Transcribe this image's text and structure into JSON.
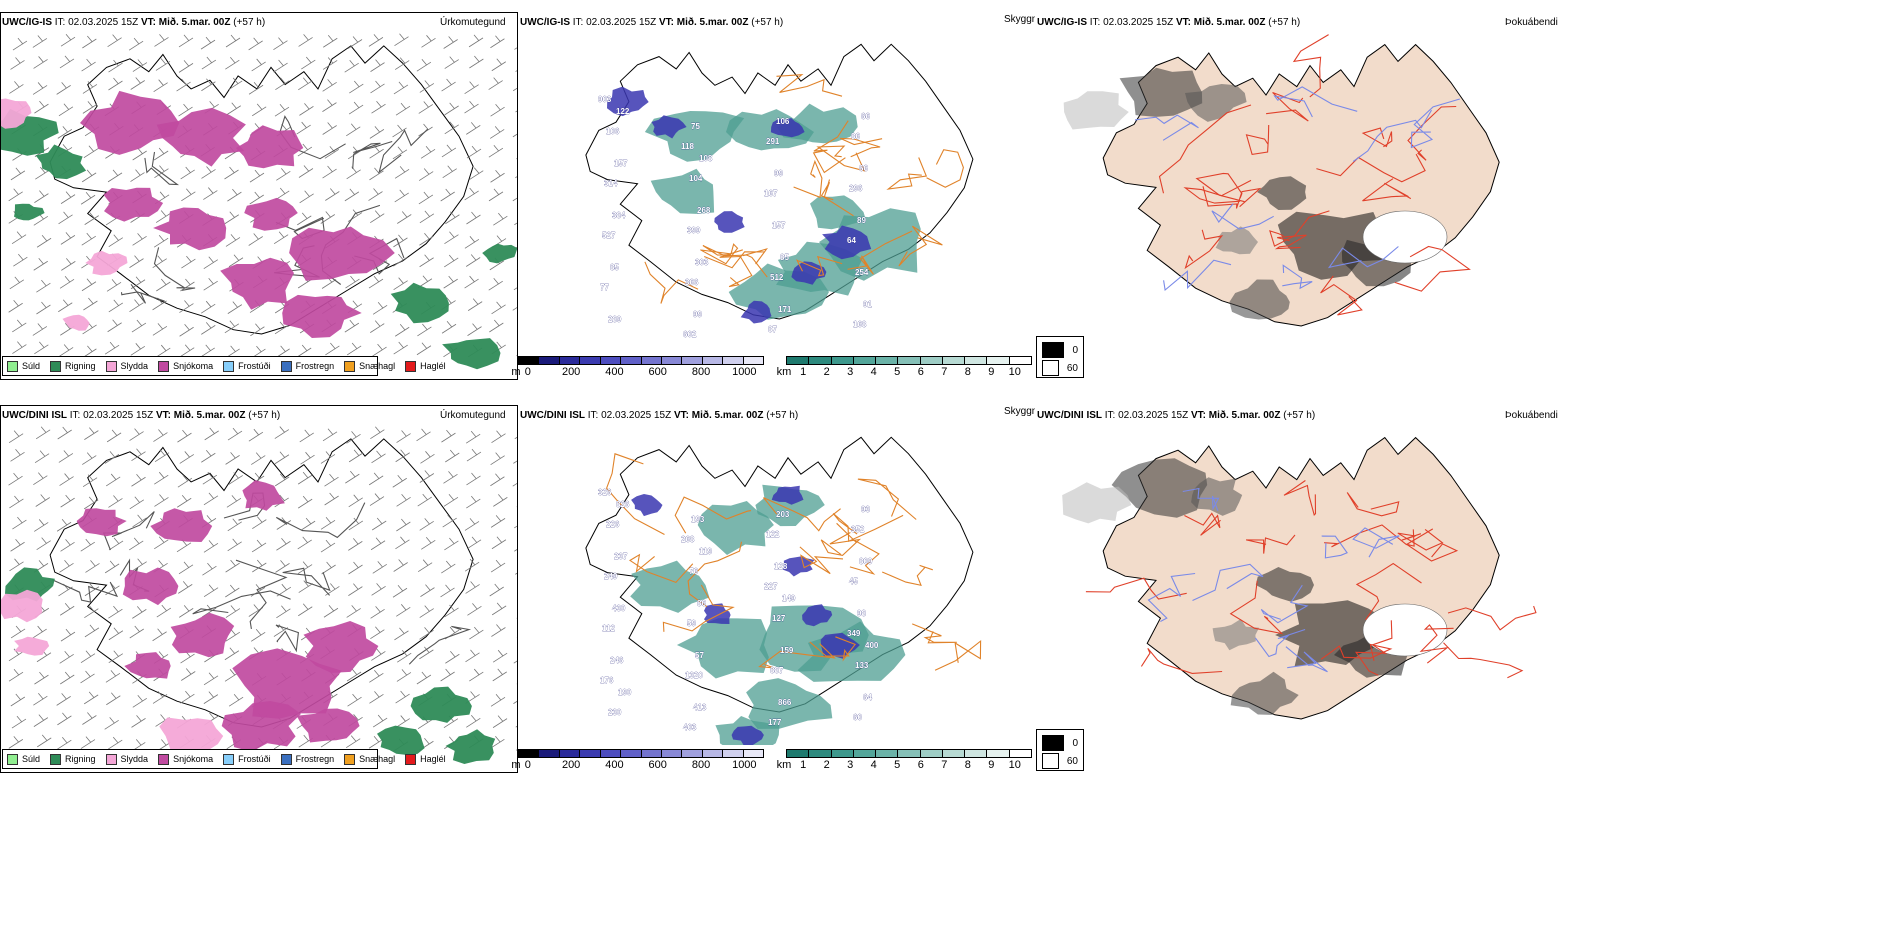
{
  "rows": [
    {
      "model": "UWC/IG-IS",
      "it_label": "IT:",
      "it_value": "02.03.2025 15Z",
      "vt_label": "VT:",
      "vt_value": "Mið. 5.mar. 00Z",
      "lead": "(+57 h)",
      "panel_titles": [
        "Úrkomutegund",
        "Skyggni",
        "Þokuábendi"
      ],
      "cloud_labels": [
        "903",
        "118",
        "167",
        "64",
        "77",
        "602",
        "291",
        "296",
        "527",
        "366",
        "87",
        "86",
        "314",
        "399",
        "512",
        "168",
        "106",
        "104",
        "157",
        "254",
        "289",
        "75",
        "99",
        "89",
        "85",
        "99",
        "106",
        "66",
        "384",
        "303",
        "171",
        "66",
        "157",
        "268",
        "85",
        "91",
        "122",
        "108"
      ]
    },
    {
      "model": "UWC/DINI ISL",
      "it_label": "IT:",
      "it_value": "02.03.2025 15Z",
      "vt_label": "VT:",
      "vt_value": "Mið. 5.mar. 00Z",
      "lead": "(+57 h)",
      "panel_titles": [
        "Úrkomutegund",
        "Skyggni",
        "Þokuábendi"
      ],
      "cloud_labels": [
        "326",
        "268",
        "227",
        "349",
        "176",
        "403",
        "122",
        "45",
        "112",
        "1320",
        "177",
        "352",
        "249",
        "59",
        "887",
        "60",
        "226",
        "76",
        "127",
        "133",
        "230",
        "193",
        "128",
        "98",
        "246",
        "413",
        "203",
        "809",
        "430",
        "57",
        "866",
        "93",
        "237",
        "86",
        "159",
        "64",
        "826",
        "119",
        "149",
        "400",
        "190"
      ]
    }
  ],
  "precip_legend": [
    {
      "label": "Súld",
      "color": "#90ee90"
    },
    {
      "label": "Rigning",
      "color": "#2e8b57"
    },
    {
      "label": "Slydda",
      "color": "#f4a6d7"
    },
    {
      "label": "Snjókoma",
      "color": "#c04aa0"
    },
    {
      "label": "Frostúði",
      "color": "#87cefa"
    },
    {
      "label": "Frostregn",
      "color": "#3a6fbf"
    },
    {
      "label": "Snæhagl",
      "color": "#f0a020"
    },
    {
      "label": "Haglél",
      "color": "#e31a1c"
    }
  ],
  "cloud_bar": {
    "unit": "m",
    "ticks": [
      "0",
      "200",
      "400",
      "600",
      "800",
      "1000"
    ],
    "colors": [
      "#000000",
      "#1a1a7a",
      "#2a2a9a",
      "#3b3bb0",
      "#4d4dbf",
      "#6060c8",
      "#7474cf",
      "#8888d6",
      "#a0a0de",
      "#b8b8e6",
      "#d0d0ee",
      "#e8e8f7"
    ]
  },
  "vis_bar": {
    "unit": "km",
    "ticks": [
      "1",
      "2",
      "3",
      "4",
      "5",
      "6",
      "7",
      "8",
      "9",
      "10"
    ],
    "colors": [
      "#1e7a6e",
      "#2d8a7e",
      "#3d988c",
      "#53a69a",
      "#6bb3a8",
      "#85c0b7",
      "#9ecdc5",
      "#b7dad3",
      "#cfe6e1",
      "#e6f2ef",
      "#ffffff"
    ]
  },
  "fog_legend": [
    {
      "label": "0",
      "color": "#000000"
    },
    {
      "label": "60",
      "color": "#ffffff"
    }
  ],
  "colors": {
    "coast": "#000000",
    "roads_orange": "#e0832a",
    "roads_red": "#e0402a",
    "rivers": "#7a8ae8",
    "land_fog": "#f2dccb",
    "snow": "#c04aa0",
    "rain": "#2e8b57",
    "sleet": "#f4a6d7"
  }
}
